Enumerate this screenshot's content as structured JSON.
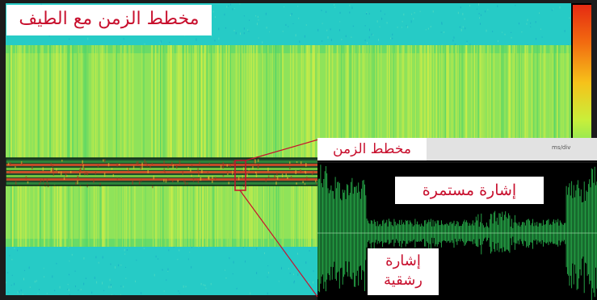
{
  "labels": {
    "spectrogram_title": "مخطط الزمن مع الطيف",
    "time_plot_title": "مخطط الزمن",
    "continuous_signal": "إشارة مستمرة",
    "burst_signal": "إشارة رشقية"
  },
  "inset_header_text": "ms/div",
  "colors": {
    "background_cyan": "#26cbc6",
    "band_green": "#9be85c",
    "signal_red": "#d9532b",
    "trace_green": "#2fd05a",
    "label_red": "#c8102e"
  },
  "icons": [
    "color-scale-bar",
    "selection-marker-icon"
  ]
}
